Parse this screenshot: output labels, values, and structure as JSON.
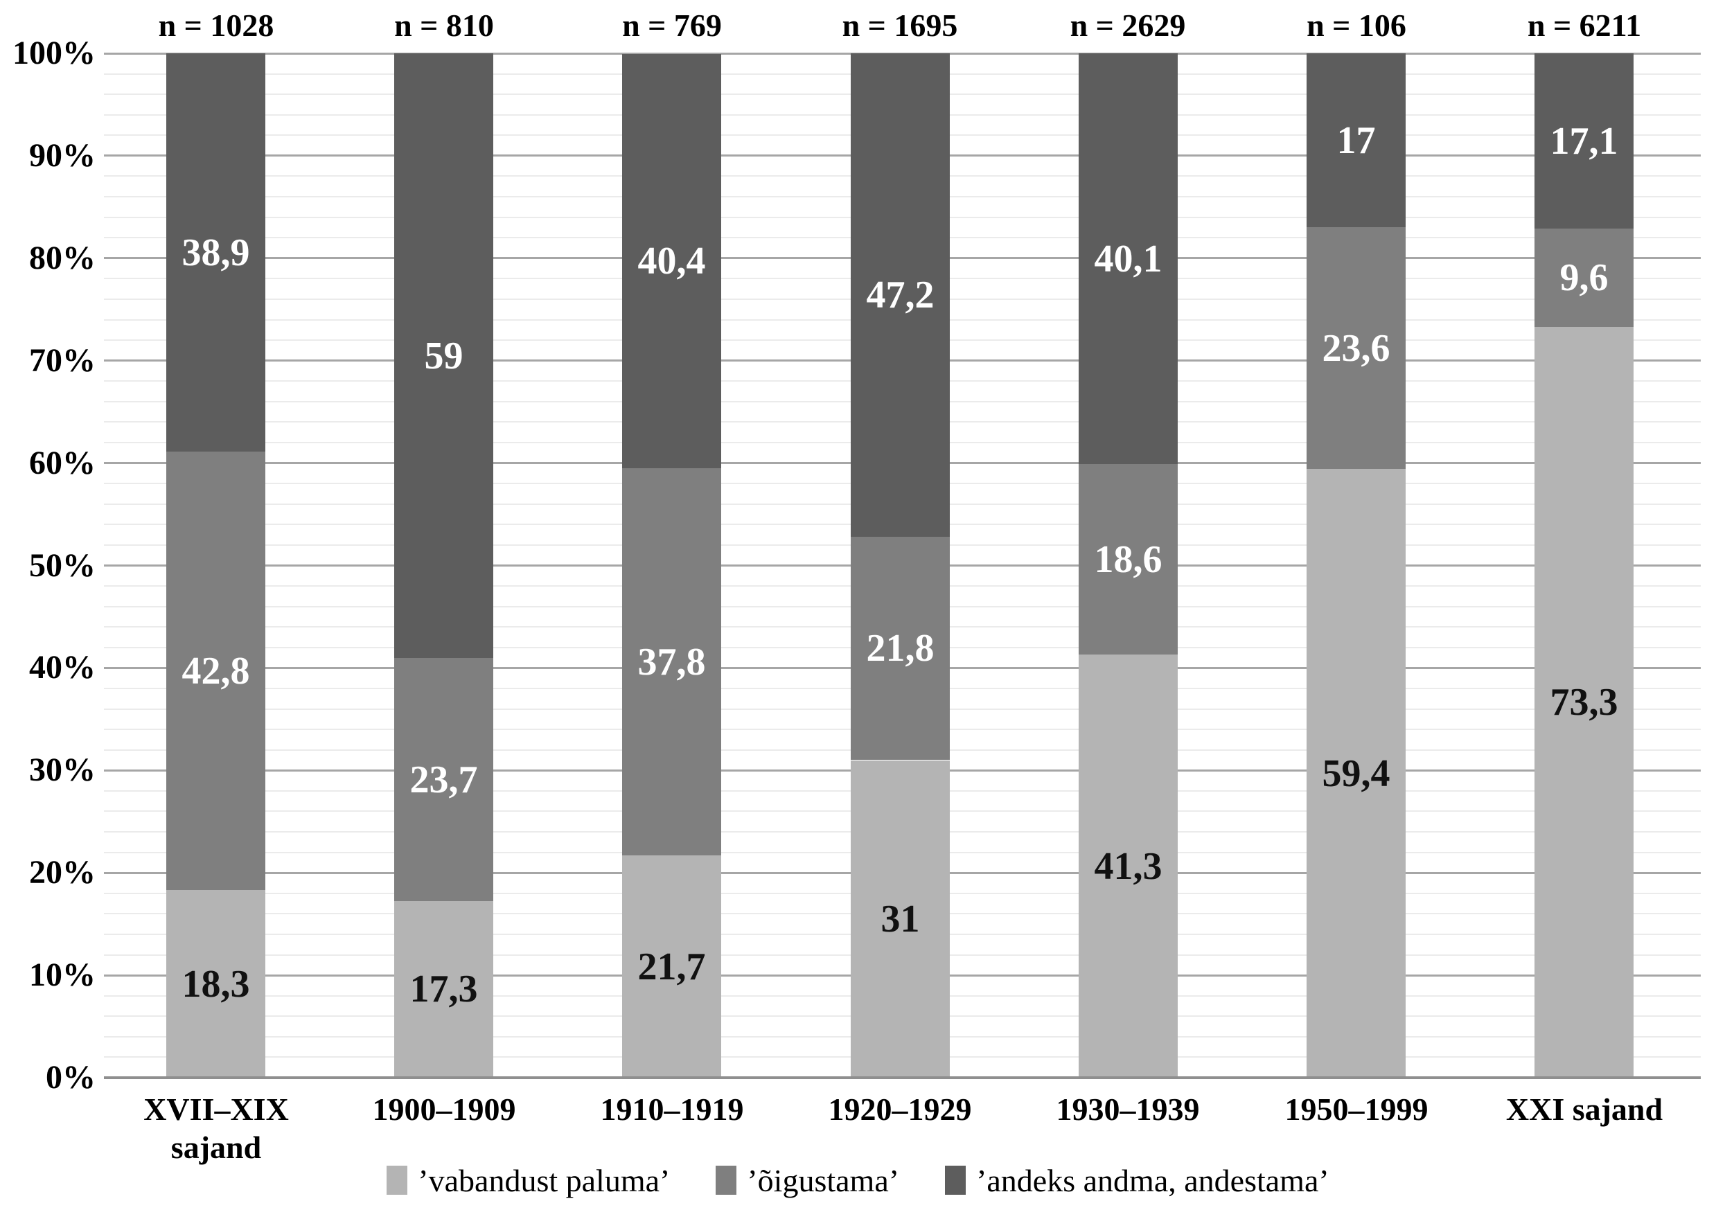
{
  "chart_data": {
    "type": "bar",
    "variant": "stacked-100-percent",
    "title": "",
    "n_labels": [
      "n = 1028",
      "n = 810",
      "n = 769",
      "n = 1695",
      "n = 2629",
      "n = 106",
      "n = 6211"
    ],
    "categories": [
      "XVII–XIX\nsajand",
      "1900–1909",
      "1910–1919",
      "1920–1929",
      "1930–1939",
      "1950–1999",
      "XXI sajand"
    ],
    "series": [
      {
        "name": "’vabandust paluma’",
        "color": "#b4b4b4",
        "label_color": "#111111",
        "values": [
          18.3,
          17.3,
          21.7,
          31,
          41.3,
          59.4,
          73.3
        ],
        "labels": [
          "18,3",
          "17,3",
          "21,7",
          "31",
          "41,3",
          "59,4",
          "73,3"
        ]
      },
      {
        "name": "’õigustama’",
        "color": "#7f7f7f",
        "label_color": "#ffffff",
        "values": [
          42.8,
          23.7,
          37.8,
          21.8,
          18.6,
          23.6,
          9.6
        ],
        "labels": [
          "42,8",
          "23,7",
          "37,8",
          "21,8",
          "18,6",
          "23,6",
          "9,6"
        ]
      },
      {
        "name": "’andeks andma, andestama’",
        "color": "#5d5d5d",
        "label_color": "#ffffff",
        "values": [
          38.9,
          59,
          40.4,
          47.2,
          40.1,
          17,
          17.1
        ],
        "labels": [
          "38,9",
          "59",
          "40,4",
          "47,2",
          "40,1",
          "17",
          "17,1"
        ]
      }
    ],
    "y_axis": {
      "ticks": [
        "0%",
        "10%",
        "20%",
        "30%",
        "40%",
        "50%",
        "60%",
        "70%",
        "80%",
        "90%",
        "100%"
      ],
      "min": 0,
      "max": 100,
      "major_step": 10,
      "minor_step": 2
    },
    "grid": true,
    "legend_position": "bottom"
  },
  "colors": {
    "background": "#ffffff",
    "major_gridline": "#a6a6a6",
    "minor_gridline": "#ebebeb",
    "baseline": "#8f8f8f",
    "text": "#000000"
  }
}
